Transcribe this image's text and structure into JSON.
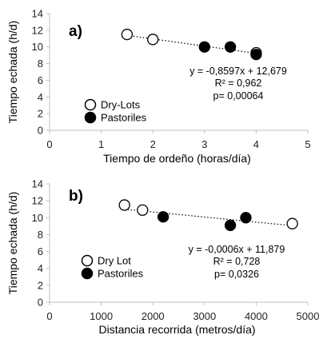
{
  "chart_data": [
    {
      "type": "scatter",
      "panel_label": "a)",
      "xlabel": "Tiempo de ordeño (horas/día)",
      "ylabel": "Tiempo echada (h/d)",
      "xlim": [
        0,
        5
      ],
      "ylim": [
        0,
        14
      ],
      "xticks": [
        "0",
        "1",
        "2",
        "3",
        "4",
        "5"
      ],
      "yticks": [
        "0",
        "2",
        "4",
        "6",
        "8",
        "10",
        "12",
        "14"
      ],
      "series": [
        {
          "name": "Dry-Lots",
          "marker": "open-circle",
          "points": [
            [
              1.5,
              11.5
            ],
            [
              2.0,
              10.9
            ],
            [
              4.0,
              9.3
            ]
          ]
        },
        {
          "name": "Pastoriles",
          "marker": "filled-circle",
          "points": [
            [
              3.0,
              10.0
            ],
            [
              3.5,
              10.0
            ],
            [
              4.0,
              9.1
            ]
          ]
        }
      ],
      "trendline": {
        "slope": -0.8597,
        "intercept": 12.679,
        "x_range": [
          1.5,
          4.0
        ],
        "style": "dotted"
      },
      "annotations": [
        "y = -0,8597x + 12,679",
        "R² = 0,962",
        "p= 0,00064"
      ],
      "legend_position": "bottom-left",
      "grid": false
    },
    {
      "type": "scatter",
      "panel_label": "b)",
      "xlabel": "Distancia recorrida (metros/día)",
      "ylabel": "Tiempo echada (h/d)",
      "xlim": [
        0,
        5000
      ],
      "ylim": [
        0,
        14
      ],
      "xticks": [
        "0",
        "1000",
        "2000",
        "3000",
        "4000",
        "5000"
      ],
      "yticks": [
        "0",
        "2",
        "4",
        "6",
        "8",
        "10",
        "12",
        "14"
      ],
      "series": [
        {
          "name": "Dry Lot",
          "marker": "open-circle",
          "points": [
            [
              1450,
              11.5
            ],
            [
              1800,
              10.9
            ],
            [
              4700,
              9.3
            ]
          ]
        },
        {
          "name": "Pastoriles",
          "marker": "filled-circle",
          "points": [
            [
              2200,
              10.1
            ],
            [
              3500,
              9.1
            ],
            [
              3800,
              10.0
            ]
          ]
        }
      ],
      "trendline": {
        "slope": -0.0006,
        "intercept": 11.879,
        "x_range": [
          1450,
          4700
        ],
        "style": "dotted"
      },
      "annotations": [
        "y = -0,0006x + 11,879",
        "R² = 0,728",
        "p= 0,0326"
      ],
      "legend_position": "bottom-left",
      "grid": false
    }
  ]
}
